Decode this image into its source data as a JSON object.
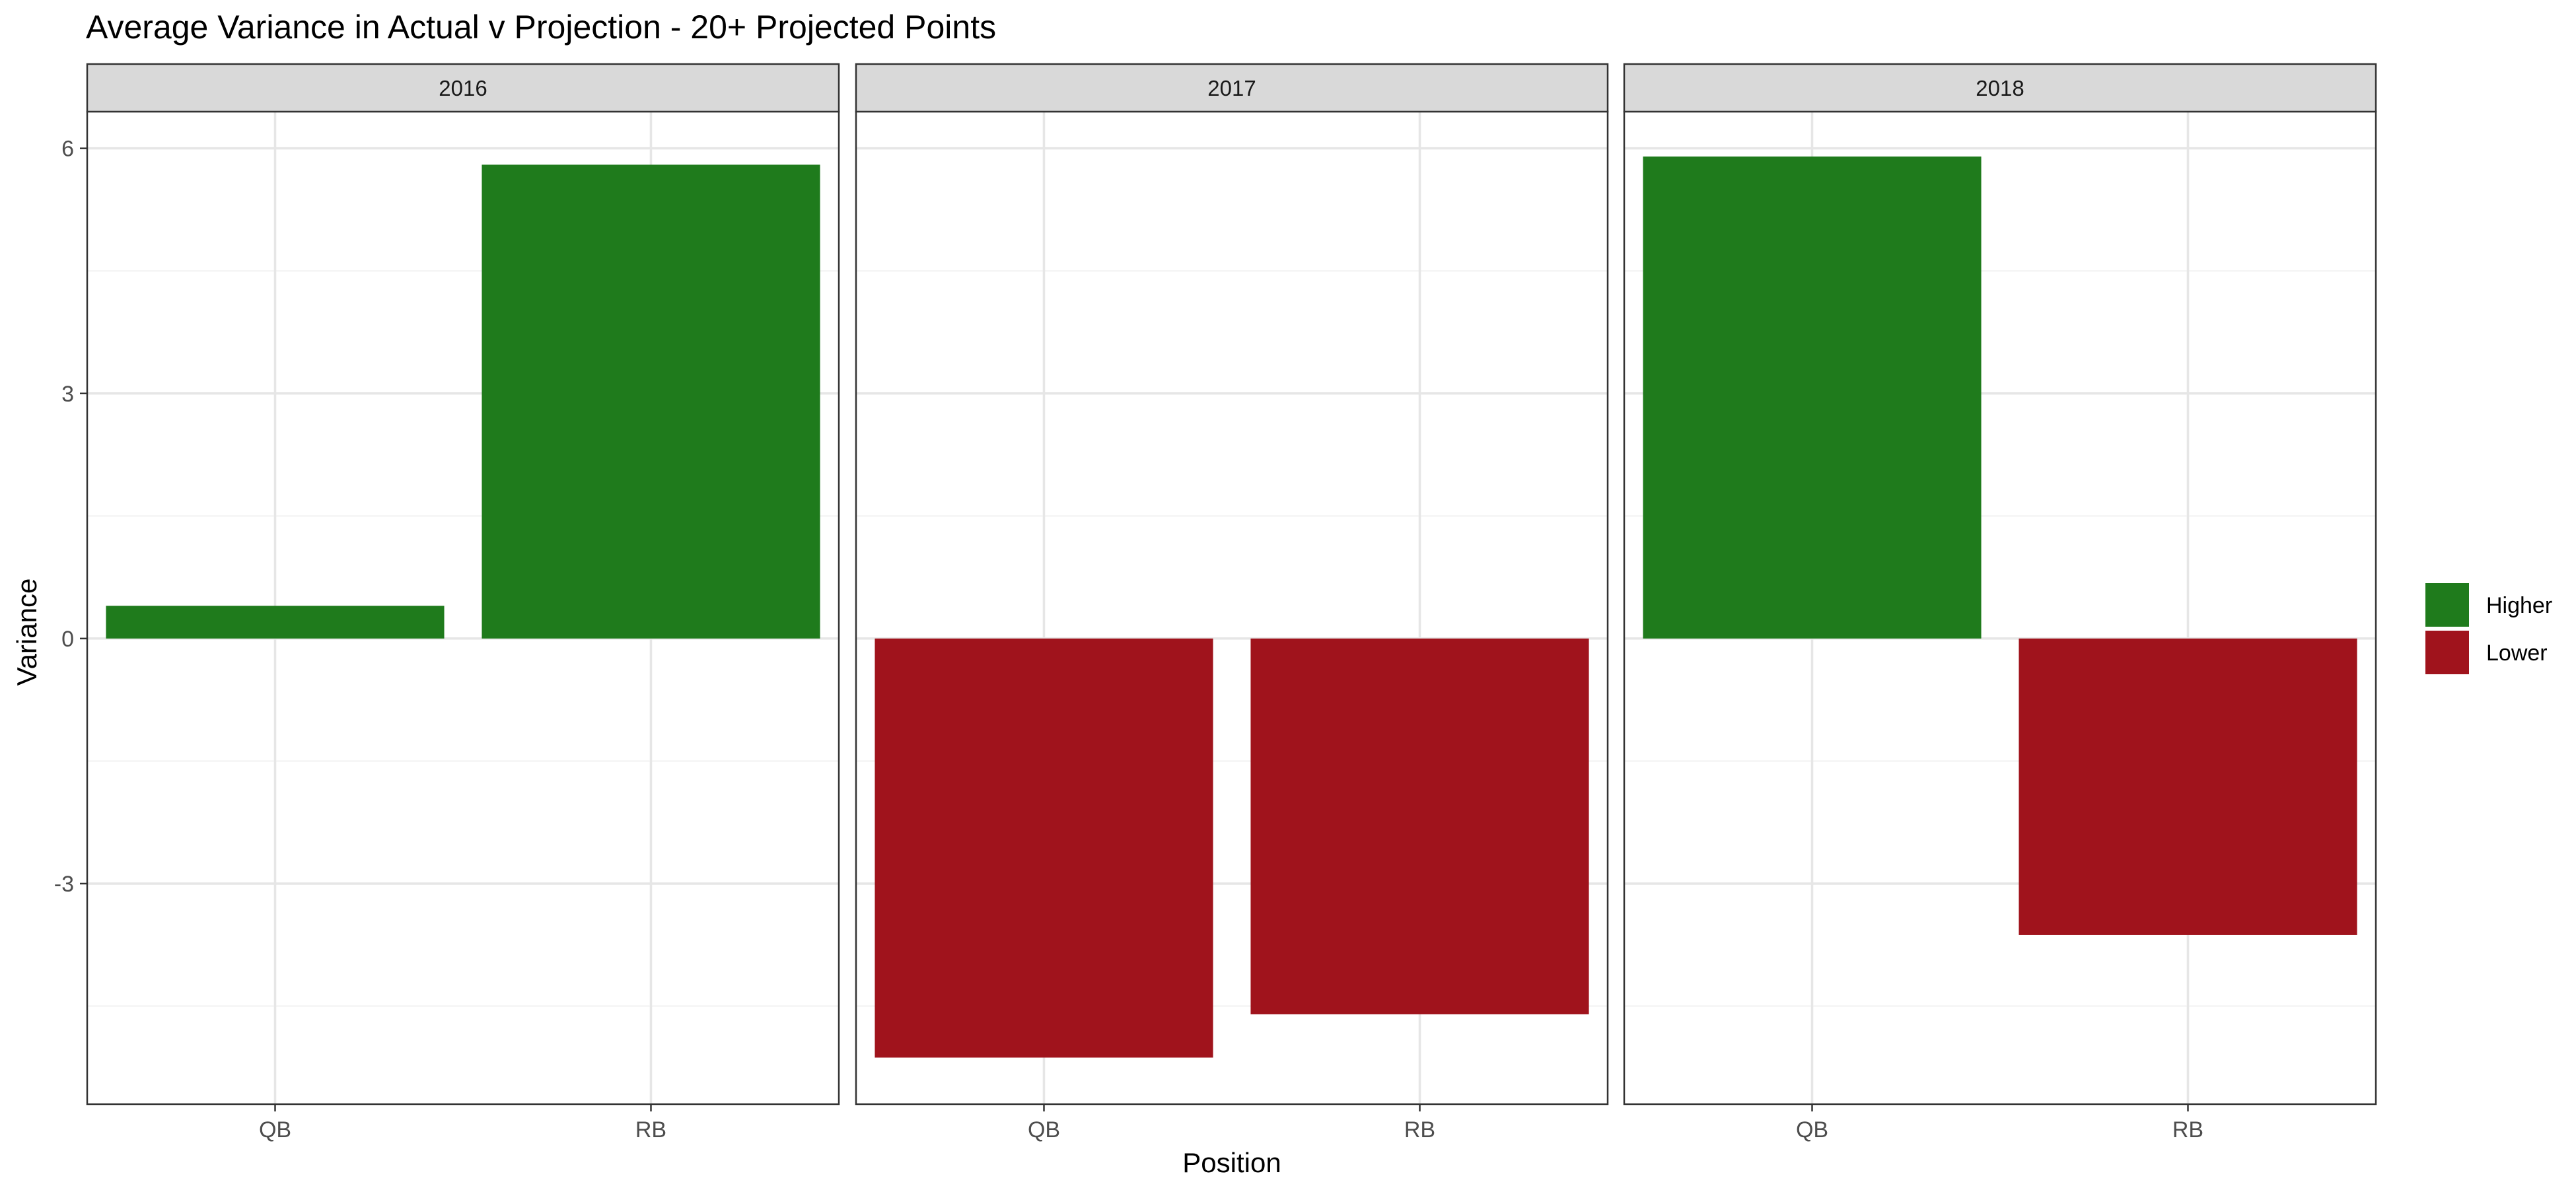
{
  "chart_data": {
    "type": "bar",
    "title": "Average Variance in Actual v Projection - 20+ Projected Points",
    "xlabel": "Position",
    "ylabel": "Variance",
    "ylim": [
      -5.7,
      6.45
    ],
    "y_ticks": [
      -3,
      0,
      3,
      6
    ],
    "y_tick_labels": [
      "-3",
      "0",
      "3",
      "6"
    ],
    "grid": true,
    "legend_position": "right",
    "legend": [
      {
        "label": "Higher",
        "color": "#1F7B1C"
      },
      {
        "label": "Lower",
        "color": "#A0131C"
      }
    ],
    "categories": [
      "QB",
      "RB"
    ],
    "facets": [
      {
        "label": "2016",
        "bars": [
          {
            "category": "QB",
            "value": 0.4,
            "group": "Higher"
          },
          {
            "category": "RB",
            "value": 5.8,
            "group": "Higher"
          }
        ]
      },
      {
        "label": "2017",
        "bars": [
          {
            "category": "QB",
            "value": -5.13,
            "group": "Lower"
          },
          {
            "category": "RB",
            "value": -4.6,
            "group": "Lower"
          }
        ]
      },
      {
        "label": "2018",
        "bars": [
          {
            "category": "QB",
            "value": 5.9,
            "group": "Higher"
          },
          {
            "category": "RB",
            "value": -3.63,
            "group": "Lower"
          }
        ]
      }
    ]
  }
}
